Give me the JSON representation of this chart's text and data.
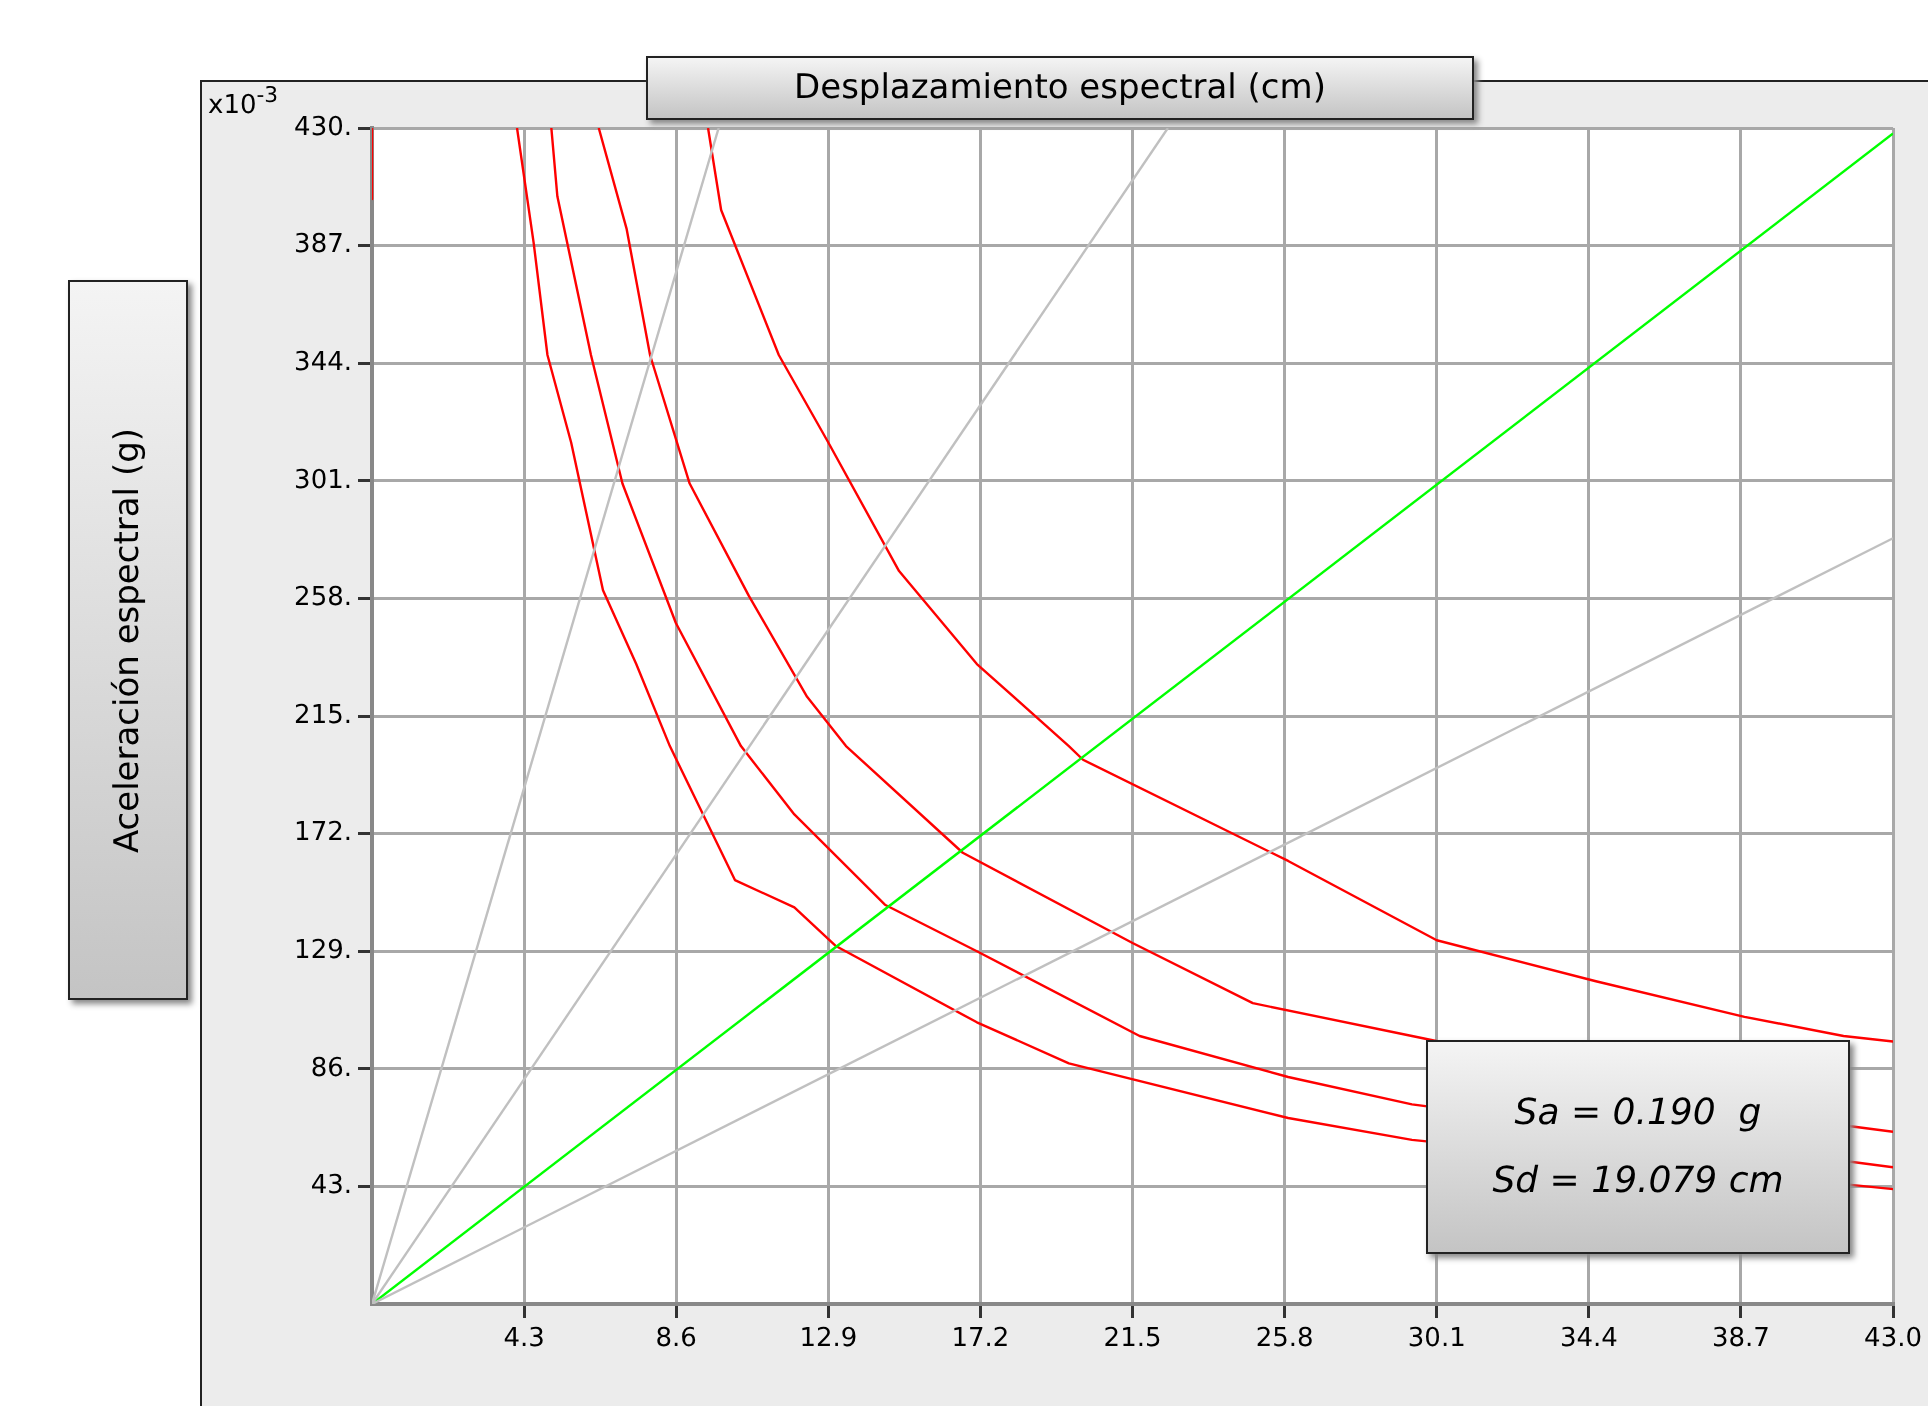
{
  "chart_data": {
    "type": "line",
    "xlabel": "Desplazamiento espectral (cm)",
    "ylabel": "Aceleración espectral (g)",
    "annotations": [
      "x10$^{-3}$",
      "Sa = 0.190  g",
      "Sd = 19.079 cm"
    ],
    "xlim": [
      0,
      43
    ],
    "ylim": [
      0,
      430
    ],
    "xticks": [
      4.3,
      8.6,
      12.9,
      17.2,
      21.5,
      25.8,
      30.1,
      34.4,
      38.7,
      {
        "value": 43,
        "label": "43.0"
      }
    ],
    "yticks": [
      {
        "value": 43,
        "label": "43."
      },
      {
        "value": 86,
        "label": "86."
      },
      {
        "value": 129,
        "label": "129."
      },
      {
        "value": 172,
        "label": "172."
      },
      {
        "value": 215,
        "label": "215."
      },
      {
        "value": 258,
        "label": "258."
      },
      {
        "value": 301,
        "label": "301."
      },
      {
        "value": 344,
        "label": "344."
      },
      {
        "value": 387,
        "label": "387."
      },
      {
        "value": 430,
        "label": "430."
      }
    ],
    "grid": true,
    "series": [
      {
        "color": "#c0c0c0",
        "x": [
          0,
          9.8
        ],
        "values": [
          0,
          430
        ]
      },
      {
        "color": "#c0c0c0",
        "x": [
          0,
          22.5
        ],
        "values": [
          0,
          430
        ]
      },
      {
        "color": "#c0c0c0",
        "x": [
          0,
          43
        ],
        "values": [
          0,
          280
        ]
      },
      {
        "color": "#00ff00",
        "x": [
          0,
          43
        ],
        "values": [
          0,
          428
        ]
      },
      {
        "color": "#ff0000",
        "x": [
          0,
          0
        ],
        "values": [
          430,
          404
        ]
      },
      {
        "color": "#ff0000",
        "x": [
          4.1,
          4.57,
          4.96,
          5.63,
          6.53,
          7.47,
          8.42,
          10.26,
          11.94,
          13.1,
          17.1,
          19.7,
          25.9,
          29.4,
          43
        ],
        "values": [
          430,
          388,
          347,
          315,
          261,
          234,
          204,
          155,
          145,
          131,
          103,
          88,
          68,
          60,
          42
        ]
      },
      {
        "color": "#ff0000",
        "x": [
          5.07,
          5.24,
          6.19,
          7.08,
          8.59,
          10.43,
          11.94,
          14.5,
          17.1,
          21.7,
          25.9,
          29.4,
          43
        ],
        "values": [
          430,
          405,
          347,
          300,
          249,
          204,
          179,
          146,
          129,
          98,
          83,
          73,
          50
        ]
      },
      {
        "color": "#ff0000",
        "x": [
          6.41,
          7.2,
          7.86,
          8.98,
          10.65,
          12.3,
          13.4,
          16.7,
          21.5,
          24.9,
          29.4,
          41.8,
          43
        ],
        "values": [
          430,
          393,
          347,
          300,
          259,
          222,
          204,
          165,
          132,
          110,
          98,
          65,
          63
        ]
      },
      {
        "color": "#ff0000",
        "x": [
          9.5,
          9.87,
          11.5,
          12.9,
          14.9,
          17.1,
          19.7,
          20.1,
          25.9,
          30.1,
          34.6,
          38.8,
          41.6,
          43
        ],
        "values": [
          430,
          400,
          347,
          315,
          268,
          234,
          204,
          199,
          162,
          133,
          118,
          105,
          98,
          96
        ]
      }
    ]
  }
}
